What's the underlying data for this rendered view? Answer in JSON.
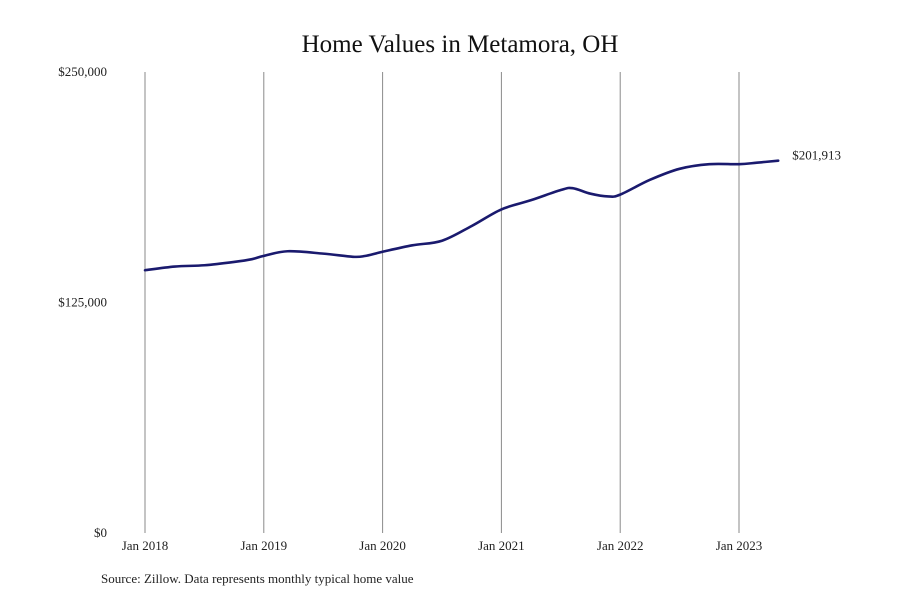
{
  "chart_data": {
    "type": "line",
    "title": "Home Values in Metamora, OH",
    "xlabel": "",
    "ylabel": "",
    "ylim": [
      0,
      250000
    ],
    "y_ticks": [
      {
        "value": 0,
        "label": "$0"
      },
      {
        "value": 125000,
        "label": "$125,000"
      },
      {
        "value": 250000,
        "label": "$250,000"
      }
    ],
    "x_ticks": [
      {
        "value": 2018.0,
        "label": "Jan 2018"
      },
      {
        "value": 2019.0,
        "label": "Jan 2019"
      },
      {
        "value": 2020.0,
        "label": "Jan 2020"
      },
      {
        "value": 2021.0,
        "label": "Jan 2021"
      },
      {
        "value": 2022.0,
        "label": "Jan 2022"
      },
      {
        "value": 2023.0,
        "label": "Jan 2023"
      }
    ],
    "xlim": [
      2018.0,
      2023.33
    ],
    "grid": "vertical",
    "line_color": "#1a1a6e",
    "series": [
      {
        "name": "",
        "x": [
          2018.0,
          2018.25,
          2018.5,
          2018.75,
          2018.9,
          2019.0,
          2019.2,
          2019.5,
          2019.75,
          2019.85,
          2020.0,
          2020.25,
          2020.5,
          2020.75,
          2021.0,
          2021.25,
          2021.5,
          2021.6,
          2021.75,
          2021.9,
          2022.0,
          2022.25,
          2022.5,
          2022.75,
          2023.0,
          2023.15,
          2023.33
        ],
        "values": [
          142500,
          144500,
          145200,
          147000,
          148500,
          150300,
          152800,
          151500,
          149800,
          150200,
          152500,
          156000,
          158500,
          166500,
          175500,
          180500,
          186000,
          187000,
          184000,
          182500,
          183500,
          191500,
          197500,
          200000,
          200000,
          200800,
          201913
        ]
      }
    ],
    "end_label": "$201,913",
    "source": "Source: Zillow. Data represents monthly typical home value"
  }
}
